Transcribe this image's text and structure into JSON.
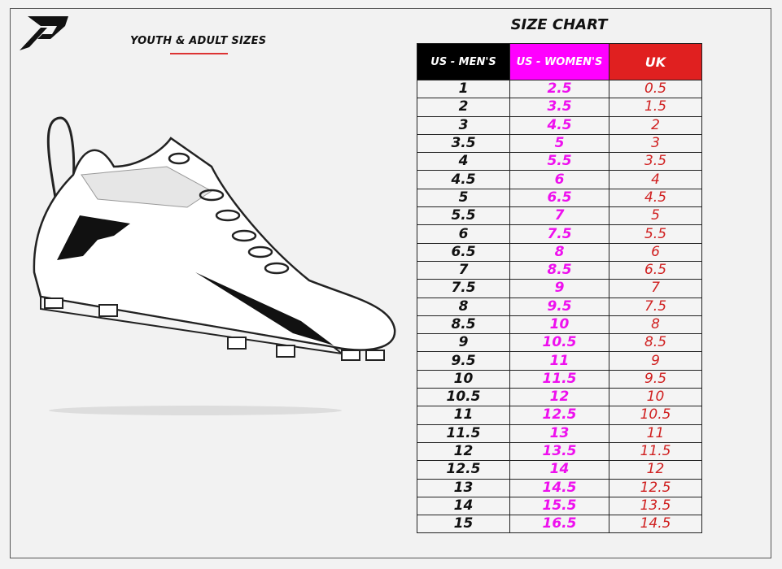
{
  "header": {
    "subtitle": "YOUTH & ADULT SIZES",
    "title": "SIZE CHART"
  },
  "colors": {
    "men": "#000000",
    "women": "#ff00ff",
    "uk": "#e02020",
    "accent_line": "#dd3333"
  },
  "table": {
    "columns": [
      "US - MEN'S",
      "US - WOMEN'S",
      "UK"
    ],
    "rows": [
      [
        "1",
        "2.5",
        "0.5"
      ],
      [
        "2",
        "3.5",
        "1.5"
      ],
      [
        "3",
        "4.5",
        "2"
      ],
      [
        "3.5",
        "5",
        "3"
      ],
      [
        "4",
        "5.5",
        "3.5"
      ],
      [
        "4.5",
        "6",
        "4"
      ],
      [
        "5",
        "6.5",
        "4.5"
      ],
      [
        "5.5",
        "7",
        "5"
      ],
      [
        "6",
        "7.5",
        "5.5"
      ],
      [
        "6.5",
        "8",
        "6"
      ],
      [
        "7",
        "8.5",
        "6.5"
      ],
      [
        "7.5",
        "9",
        "7"
      ],
      [
        "8",
        "9.5",
        "7.5"
      ],
      [
        "8.5",
        "10",
        "8"
      ],
      [
        "9",
        "10.5",
        "8.5"
      ],
      [
        "9.5",
        "11",
        "9"
      ],
      [
        "10",
        "11.5",
        "9.5"
      ],
      [
        "10.5",
        "12",
        "10"
      ],
      [
        "11",
        "12.5",
        "10.5"
      ],
      [
        "11.5",
        "13",
        "11"
      ],
      [
        "12",
        "13.5",
        "11.5"
      ],
      [
        "12.5",
        "14",
        "12"
      ],
      [
        "13",
        "14.5",
        "12.5"
      ],
      [
        "14",
        "15.5",
        "13.5"
      ],
      [
        "15",
        "16.5",
        "14.5"
      ]
    ]
  },
  "icons": {
    "logo": "brand-p-logo",
    "illustration": "football-cleat-drawing"
  }
}
